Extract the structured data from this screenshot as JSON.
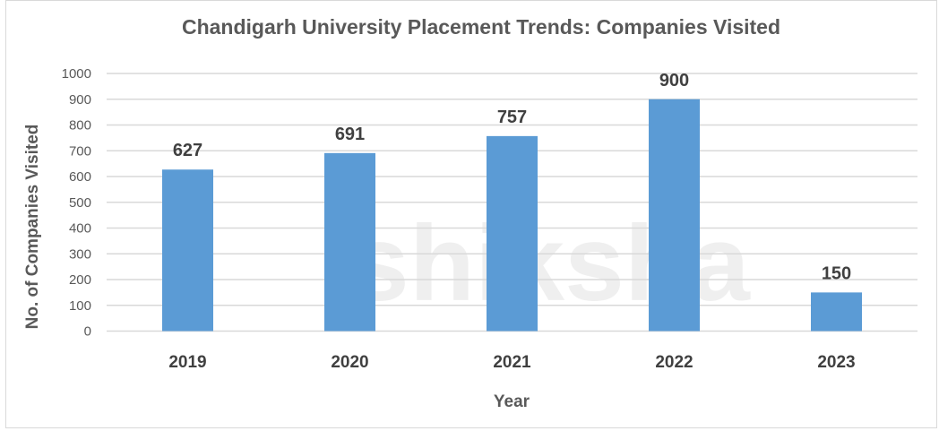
{
  "chart_data": {
    "type": "bar",
    "title": "Chandigarh University Placement Trends: Companies Visited",
    "xlabel": "Year",
    "ylabel": "No. of Companies Visited",
    "categories": [
      "2019",
      "2020",
      "2021",
      "2022",
      "2023"
    ],
    "values": [
      627,
      691,
      757,
      900,
      150
    ],
    "ylim": [
      0,
      1000
    ],
    "yticks": [
      0,
      100,
      200,
      300,
      400,
      500,
      600,
      700,
      800,
      900,
      1000
    ],
    "grid": true,
    "legend": "none",
    "bar_color": "#5b9bd5",
    "gridline_color": "#d9d9d9",
    "data_labels": true
  },
  "watermark": "shiksha"
}
